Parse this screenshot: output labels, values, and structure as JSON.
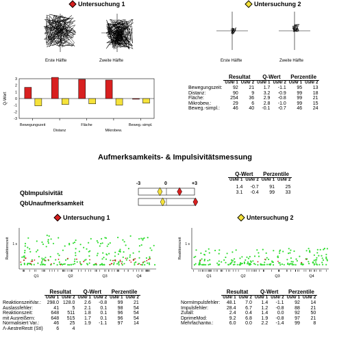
{
  "u1_header": "Untersuchung 1",
  "u2_header": "Untersuchung 2",
  "tracks": {
    "first_half": "Erste Hälfte",
    "second_half": "Zweite Hälfte"
  },
  "bar_chart": {
    "type": "bar",
    "ylabel": "Q-Wert",
    "ylim": [
      -3,
      3
    ],
    "yticks": [
      "3",
      "2",
      "1",
      "0",
      "-1",
      "-2",
      "-3"
    ],
    "categories": [
      "Bewegungszeit",
      "Distanz",
      "Fläche",
      "Mikrobew.",
      "Beweg.-simpl."
    ],
    "cat_label_row1": [
      "Bewegungszeit",
      "Fläche",
      "Beweg.-simpl."
    ],
    "cat_label_row2": [
      "Distanz",
      "Mikrobew."
    ],
    "series": [
      {
        "values": [
          1.7,
          3.2,
          2.9,
          2.8,
          -0.1
        ],
        "color": "#d82020"
      },
      {
        "values": [
          -1.1,
          -0.9,
          -0.8,
          -1.0,
          -0.7
        ],
        "color": "#f5e23a"
      }
    ]
  },
  "chart_data": [
    {
      "type": "bar",
      "ylabel": "Q-Wert",
      "ylim": [
        -3,
        3
      ],
      "categories": [
        "Bewegungszeit",
        "Distanz",
        "Fläche",
        "Mikrobew.",
        "Beweg.-simpl."
      ],
      "series": [
        {
          "values": [
            1.7,
            3.2,
            2.9,
            2.8,
            -0.1
          ]
        },
        {
          "values": [
            -1.1,
            -0.9,
            -0.8,
            -1.0,
            -0.7
          ]
        }
      ]
    }
  ],
  "move_table": {
    "groups": [
      "Resultat",
      "Q-Wert",
      "Perzentile"
    ],
    "subheads": [
      "UsNr 1",
      "UsNr 2"
    ],
    "rows": [
      {
        "label": "Bewegungszeit:",
        "vals": [
          "92",
          "21",
          "1.7",
          "-1.1",
          "95",
          "13"
        ]
      },
      {
        "label": "Distanz:",
        "vals": [
          "90",
          "9",
          "3.2",
          "-0.9",
          "99",
          "18"
        ]
      },
      {
        "label": "Fläche:",
        "vals": [
          "254",
          "36",
          "2.9",
          "-0.8",
          "99",
          "21"
        ]
      },
      {
        "label": "Mikrobew.:",
        "vals": [
          "29",
          "6",
          "2.8",
          "-1.0",
          "99",
          "15"
        ]
      },
      {
        "label": "Beweg.-simpl.:",
        "vals": [
          "46",
          "40",
          "-0.1",
          "-0.7",
          "46",
          "24"
        ]
      }
    ]
  },
  "section_title": "Aufmerksamkeits- & Impulsivitätsmessung",
  "qb": {
    "scale_min": "-3",
    "scale_mid": "0",
    "scale_max": "+3",
    "rows": [
      {
        "label": "QbImpulsivität",
        "q1": 1.4,
        "q2": -0.7,
        "vals": [
          "1.4",
          "-0.7",
          "91",
          "25"
        ]
      },
      {
        "label": "QbUnaufmerksamkeit",
        "q1": 3.1,
        "q2": -0.4,
        "vals": [
          "3.1",
          "-0.4",
          "99",
          "33"
        ]
      }
    ],
    "groups": [
      "Q-Wert",
      "Perzentile"
    ],
    "subheads": [
      "UsNr 1",
      "UsNr 2"
    ]
  },
  "scatter": {
    "ylabel": "Reaktionszeit",
    "ytick": "1 s",
    "quarters": [
      "Q1",
      "Q2",
      "Q3",
      "Q4"
    ]
  },
  "rt_table": {
    "groups": [
      "Resultat",
      "Q-Wert",
      "Perzentile"
    ],
    "subheads": [
      "UsNr 1",
      "UsNr 2"
    ],
    "rows": [
      {
        "label": "ReaktionszeitVar.:",
        "vals": [
          "298.0",
          "128.0",
          "2.6",
          "-0.8",
          "99",
          "21"
        ]
      },
      {
        "label": "Auslassfehler:",
        "vals": [
          "41",
          "5",
          "2.1",
          "0.1",
          "98",
          "54"
        ]
      },
      {
        "label": "Reaktionszeit:",
        "vals": [
          "648",
          "511",
          "1.8",
          "0.1",
          "96",
          "54"
        ]
      },
      {
        "label": "mit Ausreißern:",
        "vals": [
          "648",
          "515",
          "1.7",
          "0.1",
          "96",
          "54"
        ]
      },
      {
        "label": "Normalisiert Var.:",
        "vals": [
          "46",
          "25",
          "1.9",
          "-1.1",
          "97",
          "14"
        ]
      },
      {
        "label": "Λ-AestreRestt (StI)",
        "vals": [
          "6",
          "4",
          "",
          "",
          "",
          ""
        ]
      }
    ]
  },
  "impulse_table": {
    "groups": [
      "Resultat",
      "Q-Wert",
      "Perzentile"
    ],
    "subheads": [
      "UsNr 1",
      "UsNr 2"
    ],
    "rows": [
      {
        "label": "NormImpulsfehler:",
        "vals": [
          "48.1",
          "7.0",
          "1.4",
          "-1.1",
          "92",
          "14"
        ]
      },
      {
        "label": "Impulsfehler:",
        "vals": [
          "28.4",
          "6.7",
          "1.2",
          "-0.8",
          "88",
          "21"
        ]
      },
      {
        "label": "Zufall:",
        "vals": [
          "2.4",
          "0.4",
          "1.4",
          "0.0",
          "92",
          "50"
        ]
      },
      {
        "label": "DprimeMod:",
        "vals": [
          "9.2",
          "6.8",
          "1.9",
          "-0.8",
          "97",
          "21"
        ]
      },
      {
        "label": "Mehrfachantw.:",
        "vals": [
          "6.0",
          "0.0",
          "2.2",
          "-1.4",
          "99",
          "8"
        ]
      }
    ]
  },
  "colors": {
    "u1": "#d82020",
    "u2": "#f5e23a",
    "scatter_green": "#33dd33",
    "scatter_red": "#cc1111"
  }
}
